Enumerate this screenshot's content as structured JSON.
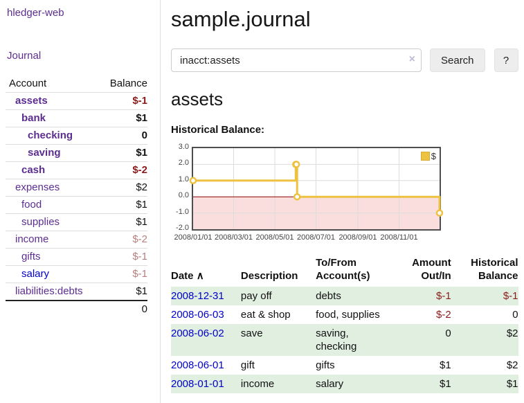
{
  "sidebar": {
    "brand": "hledger-web",
    "nav": {
      "journal": "Journal"
    },
    "accounts_table": {
      "headers": {
        "account": "Account",
        "balance": "Balance"
      },
      "rows": [
        {
          "label": "assets",
          "level": 1,
          "matched": true,
          "link_color": "purple",
          "balance": "$-1",
          "balance_tone": "red-strong"
        },
        {
          "label": "bank",
          "level": 2,
          "matched": true,
          "link_color": "purple",
          "balance": "$1",
          "balance_tone": "black"
        },
        {
          "label": "checking",
          "level": 3,
          "matched": true,
          "link_color": "purple",
          "balance": "0",
          "balance_tone": "black"
        },
        {
          "label": "saving",
          "level": 3,
          "matched": true,
          "link_color": "purple",
          "balance": "$1",
          "balance_tone": "black"
        },
        {
          "label": "cash",
          "level": 2,
          "matched": true,
          "link_color": "purple",
          "balance": "$-2",
          "balance_tone": "red-strong"
        },
        {
          "label": "expenses",
          "level": 1,
          "matched": false,
          "link_color": "purple",
          "balance": "$2",
          "balance_tone": "black"
        },
        {
          "label": "food",
          "level": 2,
          "matched": false,
          "link_color": "purple",
          "balance": "$1",
          "balance_tone": "black"
        },
        {
          "label": "supplies",
          "level": 2,
          "matched": false,
          "link_color": "purple",
          "balance": "$1",
          "balance_tone": "black"
        },
        {
          "label": "income",
          "level": 1,
          "matched": false,
          "link_color": "purple",
          "balance": "$-2",
          "balance_tone": "red-muted"
        },
        {
          "label": "gifts",
          "level": 2,
          "matched": false,
          "link_color": "purple",
          "balance": "$-1",
          "balance_tone": "red-muted"
        },
        {
          "label": "salary",
          "level": 2,
          "matched": false,
          "link_color": "blue",
          "balance": "$-1",
          "balance_tone": "red-muted"
        },
        {
          "label": "liabilities:debts",
          "level": 1,
          "matched": false,
          "link_color": "purple",
          "balance": "$1",
          "balance_tone": "black"
        }
      ],
      "total": "0"
    }
  },
  "main": {
    "title": "sample.journal",
    "search": {
      "value": "inacct:assets",
      "clear_icon": "×",
      "button_label": "Search",
      "help_label": "?"
    },
    "account_heading": "assets",
    "chart_heading": "Historical Balance:"
  },
  "chart_data": {
    "type": "line",
    "step": true,
    "title": "Historical Balance:",
    "series": [
      {
        "name": "$",
        "color": "#edc240",
        "points": [
          [
            "2008-01-01",
            1
          ],
          [
            "2008-06-01",
            2
          ],
          [
            "2008-06-02",
            2
          ],
          [
            "2008-06-03",
            0
          ],
          [
            "2008-12-31",
            -1
          ]
        ]
      }
    ],
    "xlim": [
      "2008-01-01",
      "2008-12-31"
    ],
    "ylim": [
      -2,
      3
    ],
    "y_ticks": [
      3.0,
      2.0,
      1.0,
      0.0,
      -1.0,
      -2.0
    ],
    "x_ticks": [
      {
        "date": "2008-01-01",
        "label": "2008/01/01"
      },
      {
        "date": "2008-03-01",
        "label": "2008/03/01"
      },
      {
        "date": "2008-05-01",
        "label": "2008/05/01"
      },
      {
        "date": "2008-07-01",
        "label": "2008/07/01"
      },
      {
        "date": "2008-09-01",
        "label": "2008/09/01"
      },
      {
        "date": "2008-11-01",
        "label": "2008/11/01"
      }
    ],
    "grid": true,
    "legend_position": "top-right",
    "negative_region_color": "#fadddd",
    "zero_line_color": "#8b0000",
    "grid_color": "#dcdcdc",
    "border_color": "#4d4d4d"
  },
  "register": {
    "headers": {
      "date": "Date",
      "sort_indicator": "∧",
      "description": "Description",
      "accounts": "To/From Account(s)",
      "amount": "Amount Out/In",
      "balance": "Historical Balance"
    },
    "rows": [
      {
        "date": "2008-12-31",
        "description": "pay off",
        "accounts": "debts",
        "amount": "$-1",
        "amount_negative": true,
        "balance": "$-1",
        "balance_negative": true
      },
      {
        "date": "2008-06-03",
        "description": "eat & shop",
        "accounts": "food, supplies",
        "amount": "$-2",
        "amount_negative": true,
        "balance": "0",
        "balance_negative": false
      },
      {
        "date": "2008-06-02",
        "description": "save",
        "accounts": "saving, checking",
        "amount": "0",
        "amount_negative": false,
        "balance": "$2",
        "balance_negative": false
      },
      {
        "date": "2008-06-01",
        "description": "gift",
        "accounts": "gifts",
        "amount": "$1",
        "amount_negative": false,
        "balance": "$2",
        "balance_negative": false
      },
      {
        "date": "2008-01-01",
        "description": "income",
        "accounts": "salary",
        "amount": "$1",
        "amount_negative": false,
        "balance": "$1",
        "balance_negative": false
      }
    ]
  }
}
